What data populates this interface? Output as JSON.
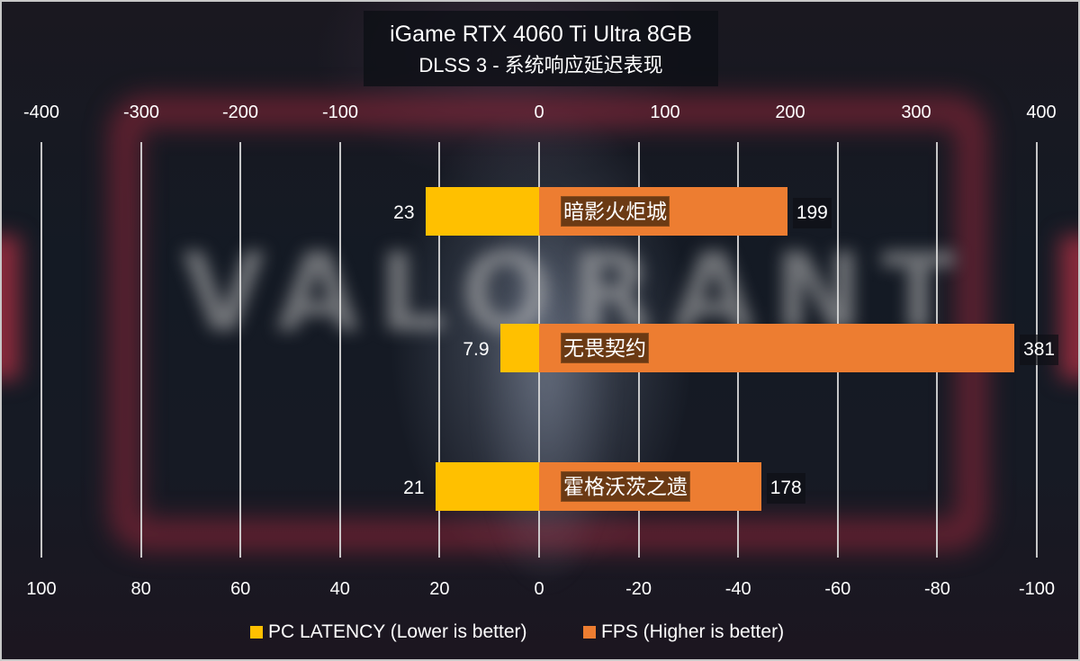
{
  "title": "iGame RTX 4060 Ti Ultra 8GB",
  "subtitle": "DLSS 3 - 系统响应延迟表现",
  "colors": {
    "latency": "#ffc000",
    "fps": "#ed7d31",
    "label_bg": "#6b3a14",
    "gridline": "#d9d9d9"
  },
  "axis_top": {
    "ticks": [
      "-400",
      "-300",
      "-200",
      "-100",
      "0",
      "100",
      "200",
      "300",
      "400"
    ]
  },
  "axis_bottom": {
    "ticks": [
      "100",
      "80",
      "60",
      "40",
      "20",
      "0",
      "-20",
      "-40",
      "-60",
      "-80",
      "-100"
    ]
  },
  "legend": [
    {
      "label": "PC LATENCY (Lower is better)",
      "color": "#ffc000"
    },
    {
      "label": "FPS (Higher is better)",
      "color": "#ed7d31"
    }
  ],
  "games": [
    {
      "name": "暗影火炬城",
      "latency": "23",
      "fps": "199"
    },
    {
      "name": "无畏契约",
      "latency": "7.9",
      "fps": "381"
    },
    {
      "name": "霍格沃茨之遗",
      "latency": "21",
      "fps": "178"
    }
  ],
  "chart_data": {
    "type": "bar",
    "orientation": "horizontal",
    "title": "iGame RTX 4060 Ti Ultra 8GB",
    "subtitle": "DLSS 3 - 系统响应延迟表现",
    "categories": [
      "暗影火炬城",
      "无畏契约",
      "霍格沃茨之遗"
    ],
    "series": [
      {
        "name": "PC LATENCY (Lower is better)",
        "values": [
          23,
          7.9,
          21
        ],
        "color": "#ffc000",
        "axis": "bottom",
        "direction": "left"
      },
      {
        "name": "FPS (Higher is better)",
        "values": [
          199,
          381,
          178
        ],
        "color": "#ed7d31",
        "axis": "top",
        "direction": "right"
      }
    ],
    "top_axis": {
      "range": [
        -400,
        400
      ],
      "ticks": [
        -400,
        -300,
        -200,
        -100,
        0,
        100,
        200,
        300,
        400
      ]
    },
    "bottom_axis": {
      "range": [
        100,
        -100
      ],
      "ticks": [
        100,
        80,
        60,
        40,
        20,
        0,
        -20,
        -40,
        -60,
        -80,
        -100
      ]
    },
    "grid": "vertical",
    "legend_position": "bottom"
  }
}
